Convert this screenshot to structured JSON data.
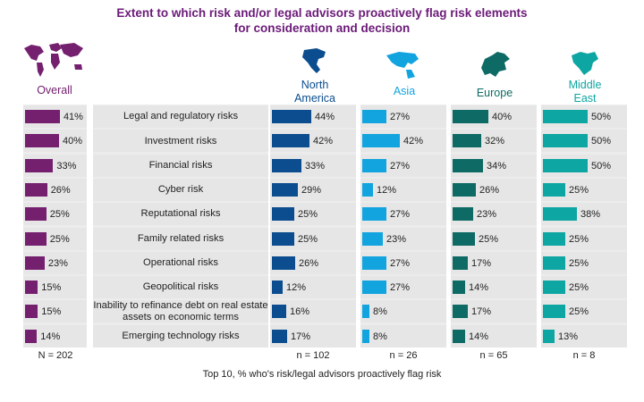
{
  "chart_data": {
    "type": "bar",
    "title_lines": [
      "Extent to which risk and/or legal advisors proactively flag risk elements",
      "for consideration and decision"
    ],
    "footnote": "Top 10, % who's risk/legal advisors proactively flag risk",
    "categories": [
      "Legal and regulatory risks",
      "Investment risks",
      "Financial risks",
      "Cyber risk",
      "Reputational risks",
      "Family related risks",
      "Operational risks",
      "Geopolitical risks",
      "Inability to refinance debt on real estate assets on economic terms",
      "Emerging technology risks"
    ],
    "xlim": [
      0,
      100
    ],
    "value_suffix": "%",
    "series": [
      {
        "name": "Overall",
        "n": "N = 202",
        "color": "#74206f",
        "icon": "world-map-icon",
        "values": [
          41,
          40,
          33,
          26,
          25,
          25,
          23,
          15,
          15,
          14
        ]
      },
      {
        "name": "North America",
        "name_lines": [
          "North",
          "America"
        ],
        "n": "n = 102",
        "color": "#0b4d8f",
        "icon": "north-america-map-icon",
        "values": [
          44,
          42,
          33,
          29,
          25,
          25,
          26,
          12,
          16,
          17
        ]
      },
      {
        "name": "Asia",
        "name_lines": [
          "Asia"
        ],
        "n": "n = 26",
        "color": "#12a4df",
        "icon": "asia-map-icon",
        "values": [
          27,
          42,
          27,
          12,
          27,
          23,
          27,
          27,
          8,
          8
        ]
      },
      {
        "name": "Europe",
        "name_lines": [
          "Europe"
        ],
        "n": "n = 65",
        "color": "#0d6a64",
        "icon": "europe-map-icon",
        "values": [
          40,
          32,
          34,
          26,
          23,
          25,
          17,
          14,
          17,
          14
        ]
      },
      {
        "name": "Middle East",
        "name_lines": [
          "Middle",
          "East"
        ],
        "n": "n = 8",
        "color": "#0ea6a2",
        "icon": "middle-east-map-icon",
        "values": [
          50,
          50,
          50,
          25,
          38,
          25,
          25,
          25,
          25,
          13
        ]
      }
    ]
  }
}
